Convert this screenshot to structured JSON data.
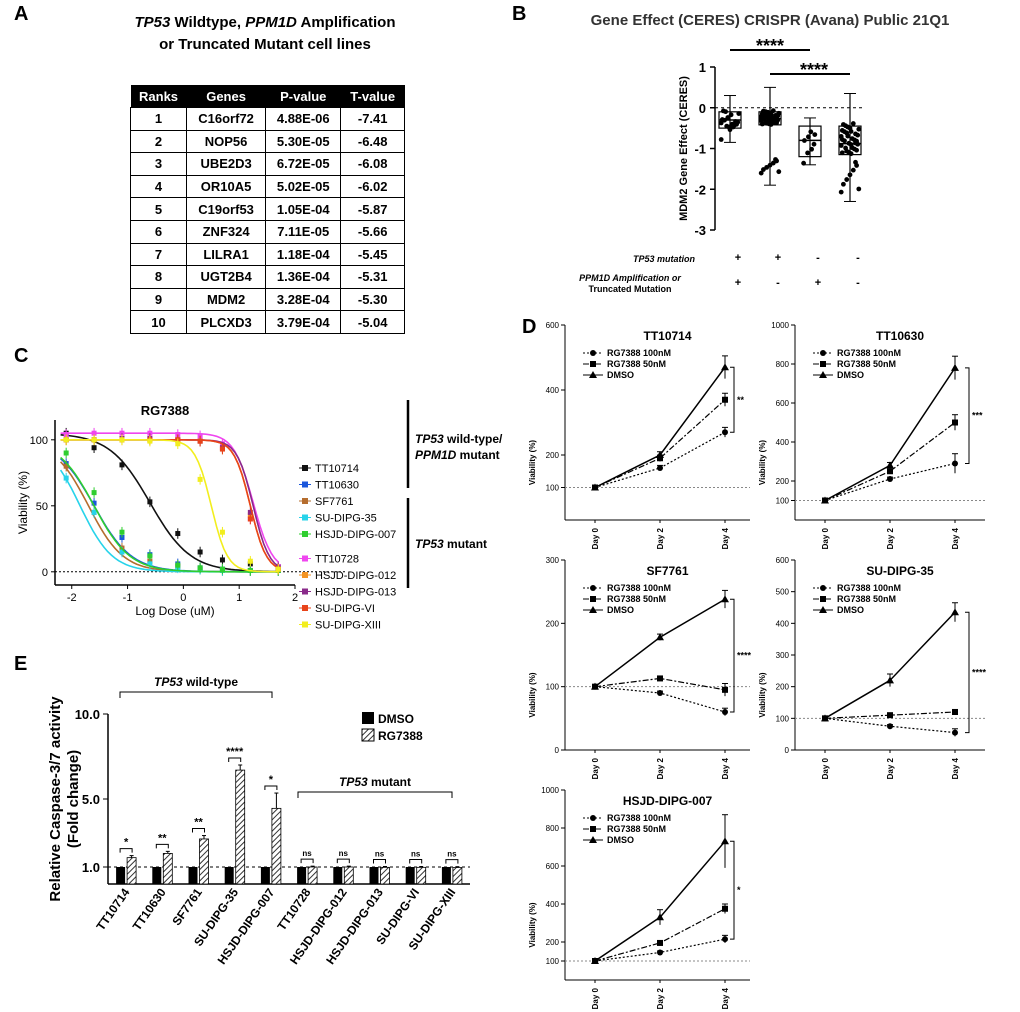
{
  "panel_labels": {
    "a": "A",
    "b": "B",
    "c": "C",
    "d": "D",
    "e": "E"
  },
  "panel_a": {
    "title_gene1": "TP53",
    "title_line1_rest": " Wildtype, ",
    "title_gene2": "PPM1D",
    "title_line1_end": " Amplification",
    "title_line2": "or Truncated Mutant cell lines"
  },
  "chart_data": [
    {
      "id": "A",
      "type": "table",
      "columns": [
        "Ranks",
        "Genes",
        "P-value",
        "T-value"
      ],
      "rows": [
        [
          "1",
          "C16orf72",
          "4.88E-06",
          "-7.41"
        ],
        [
          "2",
          "NOP56",
          "5.30E-05",
          "-6.48"
        ],
        [
          "3",
          "UBE2D3",
          "6.72E-05",
          "-6.08"
        ],
        [
          "4",
          "OR10A5",
          "5.02E-05",
          "-6.02"
        ],
        [
          "5",
          "C19orf53",
          "1.05E-04",
          "-5.87"
        ],
        [
          "6",
          "ZNF324",
          "7.11E-05",
          "-5.66"
        ],
        [
          "7",
          "LILRA1",
          "1.18E-04",
          "-5.45"
        ],
        [
          "8",
          "UGT2B4",
          "1.36E-04",
          "-5.31"
        ],
        [
          "9",
          "MDM2",
          "3.28E-04",
          "-5.30"
        ],
        [
          "10",
          "PLCXD3",
          "3.79E-04",
          "-5.04"
        ]
      ]
    },
    {
      "id": "B",
      "type": "box",
      "title": "Gene Effect (CERES) CRISPR (Avana) Public 21Q1",
      "ylabel": "MDM2 Gene Effect (CERES)",
      "ylim": [
        -3,
        1
      ],
      "yticks": [
        "1",
        "0",
        "-1",
        "-2",
        "-3"
      ],
      "groups": [
        {
          "min": -0.85,
          "q1": -0.5,
          "median": -0.3,
          "q3": -0.1,
          "max": 0.3
        },
        {
          "min": -1.9,
          "q1": -0.42,
          "median": -0.27,
          "q3": -0.1,
          "max": 0.5
        },
        {
          "min": -1.4,
          "q1": -1.2,
          "median": -0.8,
          "q3": -0.45,
          "max": -0.25
        },
        {
          "min": -2.3,
          "q1": -1.15,
          "median": -0.88,
          "q3": -0.45,
          "max": 0.35
        }
      ],
      "row_labels": [
        "TP53 mutation",
        "PPM1D Amplification or",
        "Truncated Mutation"
      ],
      "tp53_mutation": [
        "+",
        "+",
        "-",
        "-"
      ],
      "ppm1d": [
        "+",
        "-",
        "+",
        "-"
      ],
      "significance": [
        "****",
        "****"
      ]
    },
    {
      "id": "C",
      "type": "line",
      "title": "RG7388",
      "xlabel": "Log Dose (uM)",
      "ylabel": "Viability (%)",
      "xlim": [
        -2.3,
        2
      ],
      "ylim": [
        -10,
        115
      ],
      "xticks": [
        "-2",
        "-1",
        "0",
        "1",
        "2"
      ],
      "yticks": [
        "0",
        "50",
        "100"
      ],
      "x": [
        -2.1,
        -1.6,
        -1.1,
        -0.6,
        -0.1,
        0.3,
        0.7,
        1.2,
        1.7
      ],
      "series": [
        {
          "name": "TT10714",
          "color": "#111111",
          "marker": "square",
          "ec50": -0.6,
          "hill": 1.2,
          "y": [
            105,
            94,
            81,
            53,
            29,
            15,
            9,
            6,
            4
          ]
        },
        {
          "name": "TT10630",
          "color": "#1a56db",
          "marker": "square",
          "ec50": -1.6,
          "hill": 1.3,
          "y": [
            82,
            52,
            26,
            13,
            6,
            3,
            2,
            1,
            1
          ]
        },
        {
          "name": "SF7761",
          "color": "#b56d2e",
          "marker": "square",
          "ec50": -1.7,
          "hill": 1.4,
          "y": [
            80,
            45,
            18,
            8,
            4,
            2,
            1,
            1,
            1
          ]
        },
        {
          "name": "SU-DIPG-35",
          "color": "#27d3ea",
          "marker": "square",
          "ec50": -1.85,
          "hill": 1.5,
          "y": [
            71,
            45,
            15,
            6,
            3,
            2,
            1,
            1,
            1
          ]
        },
        {
          "name": "HSJD-DIPG-007",
          "color": "#2fce2f",
          "marker": "square",
          "ec50": -1.6,
          "hill": 1.35,
          "y": [
            90,
            60,
            30,
            12,
            5,
            3,
            2,
            1,
            1
          ]
        },
        {
          "name": "TT10728",
          "color": "#ef46ef",
          "marker": "square",
          "ec50": 1.25,
          "hill": 2.5,
          "y": [
            104,
            105,
            105,
            105,
            104,
            103,
            97,
            40,
            4
          ]
        },
        {
          "name": "HSJD-DIPG-012",
          "color": "#f39424",
          "marker": "square",
          "ec50": 1.2,
          "hill": 3,
          "y": [
            100,
            100,
            100,
            100,
            100,
            99,
            93,
            43,
            2
          ]
        },
        {
          "name": "HSJD-DIPG-013",
          "color": "#8a2a8a",
          "marker": "square",
          "ec50": 1.25,
          "hill": 3,
          "y": [
            100,
            100,
            101,
            101,
            100,
            99,
            94,
            45,
            3
          ]
        },
        {
          "name": "SU-DIPG-VI",
          "color": "#e8431a",
          "marker": "square",
          "ec50": 1.2,
          "hill": 3,
          "y": [
            100,
            100,
            100,
            100,
            100,
            99,
            93,
            40,
            2
          ]
        },
        {
          "name": "SU-DIPG-XIII",
          "color": "#f2ee1e",
          "marker": "square",
          "ec50": 0.5,
          "hill": 3,
          "y": [
            100,
            100,
            100,
            99,
            97,
            70,
            30,
            8,
            2
          ]
        }
      ],
      "groups": [
        {
          "line1": "TP53",
          "line1_rest": " wild-type/",
          "line2": "PPM1D",
          "line2_rest": " mutant"
        },
        {
          "line1": "TP53",
          "line1_rest": " mutant"
        }
      ]
    },
    {
      "id": "E",
      "type": "bar",
      "ylabel_line1": "Relative Caspase-3/7 activity",
      "ylabel_line2": "(Fold change)",
      "ylim": [
        0,
        10
      ],
      "yticks": [
        "1.0",
        "5.0",
        "10.0"
      ],
      "categories": [
        "TT10714",
        "TT10630",
        "SF7761",
        "SU-DIPG-35",
        "HSJD-DIPG-007",
        "TT10728",
        "HSJD-DIPG-012",
        "HSJD-DIPG-013",
        "SU-DIPG-VI",
        "SU-DIPG-XIII"
      ],
      "series": [
        {
          "name": "DMSO",
          "values": [
            1,
            1,
            1,
            1,
            1,
            1,
            1,
            1,
            1,
            1
          ]
        },
        {
          "name": "RG7388",
          "values": [
            1.55,
            1.8,
            2.65,
            6.7,
            4.45,
            1.0,
            1.0,
            0.98,
            0.98,
            0.97
          ],
          "err": [
            0.12,
            0.12,
            0.2,
            0.3,
            0.9,
            0.05,
            0.05,
            0.05,
            0.05,
            0.05
          ]
        }
      ],
      "significance": [
        "*",
        "**",
        "**",
        "****",
        "*",
        "ns",
        "ns",
        "ns",
        "ns",
        "ns"
      ],
      "group_wild": {
        "gene": "TP53",
        "rest": " wild-type"
      },
      "group_mut": {
        "gene": "TP53",
        "rest": " mutant"
      }
    },
    {
      "id": "D",
      "type": "line",
      "categories": [
        "Day 0",
        "Day 2",
        "Day 4"
      ],
      "ylabel": "Viability (%)",
      "legend": [
        "RG7388 100nM",
        "RG7388 50nM",
        "DMSO"
      ],
      "subcharts": [
        {
          "title": "TT10714",
          "yticks": [
            100,
            200,
            400,
            600
          ],
          "ymin": 0,
          "ymax": 600,
          "sig": "**",
          "series": [
            {
              "y": [
                100,
                160,
                270
              ],
              "err": [
                5,
                8,
                15
              ]
            },
            {
              "y": [
                100,
                190,
                370
              ],
              "err": [
                5,
                10,
                20
              ]
            },
            {
              "y": [
                100,
                200,
                470
              ],
              "err": [
                5,
                10,
                35
              ]
            }
          ]
        },
        {
          "title": "TT10630",
          "yticks": [
            100,
            200,
            400,
            600,
            800,
            1000
          ],
          "ymin": 0,
          "ymax": 1000,
          "sig": "***",
          "series": [
            {
              "y": [
                100,
                210,
                290
              ],
              "err": [
                5,
                10,
                50
              ]
            },
            {
              "y": [
                100,
                250,
                500
              ],
              "err": [
                5,
                10,
                40
              ]
            },
            {
              "y": [
                100,
                280,
                780
              ],
              "err": [
                5,
                15,
                60
              ]
            }
          ]
        },
        {
          "title": "SF7761",
          "yticks": [
            0,
            100,
            200,
            300
          ],
          "ymin": 0,
          "ymax": 300,
          "sig": "****",
          "series": [
            {
              "y": [
                100,
                90,
                60
              ],
              "err": [
                3,
                3,
                6
              ]
            },
            {
              "y": [
                100,
                113,
                95
              ],
              "err": [
                3,
                3,
                10
              ]
            },
            {
              "y": [
                100,
                178,
                238
              ],
              "err": [
                3,
                5,
                14
              ]
            }
          ]
        },
        {
          "title": "SU-DIPG-35",
          "yticks": [
            0,
            100,
            200,
            300,
            400,
            500,
            600
          ],
          "ymin": 0,
          "ymax": 600,
          "sig": "****",
          "series": [
            {
              "y": [
                100,
                75,
                55
              ],
              "err": [
                5,
                5,
                12
              ]
            },
            {
              "y": [
                100,
                110,
                120
              ],
              "err": [
                5,
                5,
                8
              ]
            },
            {
              "y": [
                100,
                220,
                435
              ],
              "err": [
                5,
                20,
                30
              ]
            }
          ]
        },
        {
          "title": "HSJD-DIPG-007",
          "yticks": [
            100,
            200,
            400,
            600,
            800,
            1000
          ],
          "ymin": 0,
          "ymax": 1000,
          "sig": "*",
          "series": [
            {
              "y": [
                100,
                145,
                215
              ],
              "err": [
                5,
                8,
                20
              ]
            },
            {
              "y": [
                100,
                195,
                375
              ],
              "err": [
                5,
                10,
                25
              ]
            },
            {
              "y": [
                100,
                330,
                730
              ],
              "err": [
                5,
                40,
                140
              ]
            }
          ]
        }
      ]
    }
  ]
}
